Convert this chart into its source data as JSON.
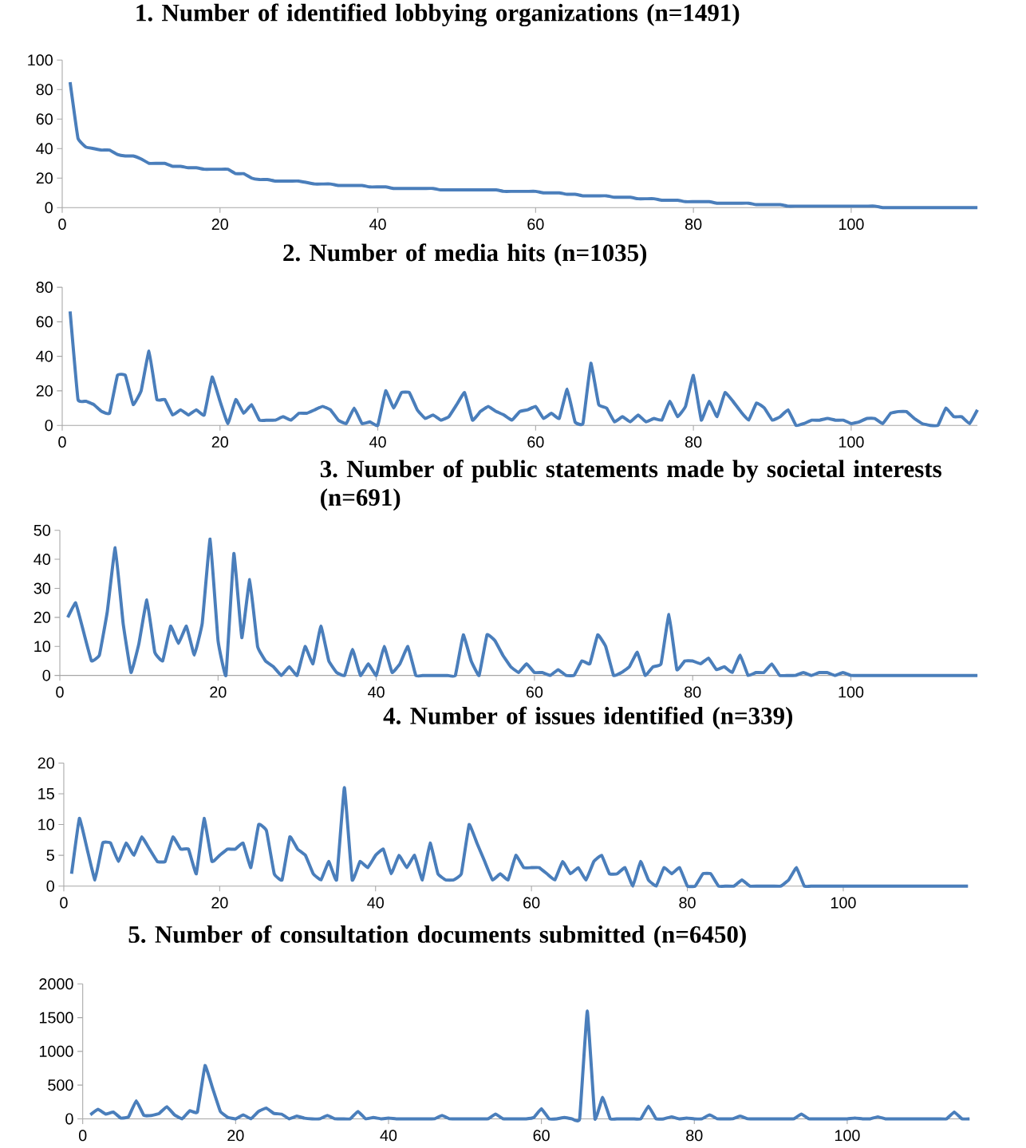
{
  "chart_data": [
    {
      "type": "line",
      "title": "1. Number of identified lobbying organizations (n=1491)",
      "xlim": [
        0,
        116
      ],
      "xticks": [
        0,
        20,
        40,
        60,
        80,
        100
      ],
      "ylim": [
        0,
        100
      ],
      "yticks": [
        0,
        20,
        40,
        60,
        80,
        100
      ],
      "grid": false,
      "x": [
        1,
        2,
        3,
        4,
        5,
        6,
        7,
        8,
        9,
        10,
        11,
        12,
        13,
        14,
        15,
        16,
        17,
        18,
        19,
        20,
        21,
        22,
        23,
        24,
        25,
        26,
        27,
        28,
        29,
        30,
        31,
        32,
        33,
        34,
        35,
        36,
        37,
        38,
        39,
        40,
        41,
        42,
        43,
        44,
        45,
        46,
        47,
        48,
        49,
        50,
        51,
        52,
        53,
        54,
        55,
        56,
        57,
        58,
        59,
        60,
        61,
        62,
        63,
        64,
        65,
        66,
        67,
        68,
        69,
        70,
        71,
        72,
        73,
        74,
        75,
        76,
        77,
        78,
        79,
        80,
        81,
        82,
        83,
        84,
        85,
        86,
        87,
        88,
        89,
        90,
        91,
        92,
        93,
        94,
        95,
        96,
        97,
        98,
        99,
        100,
        101,
        102,
        103,
        104,
        105,
        106,
        107,
        108,
        109,
        110,
        111,
        112,
        113,
        114,
        115,
        116
      ],
      "series": [
        {
          "color": "#4a7ebb",
          "values": [
            85,
            47,
            41,
            40,
            39,
            39,
            36,
            35,
            35,
            33,
            30,
            30,
            30,
            28,
            28,
            27,
            27,
            26,
            26,
            26,
            26,
            23,
            23,
            20,
            19,
            19,
            18,
            18,
            18,
            18,
            17,
            16,
            16,
            16,
            15,
            15,
            15,
            15,
            14,
            14,
            14,
            13,
            13,
            13,
            13,
            13,
            13,
            12,
            12,
            12,
            12,
            12,
            12,
            12,
            12,
            11,
            11,
            11,
            11,
            11,
            10,
            10,
            10,
            9,
            9,
            8,
            8,
            8,
            8,
            7,
            7,
            7,
            6,
            6,
            6,
            5,
            5,
            5,
            4,
            4,
            4,
            4,
            3,
            3,
            3,
            3,
            3,
            2,
            2,
            2,
            2,
            1,
            1,
            1,
            1,
            1,
            1,
            1,
            1,
            1,
            1,
            1,
            1,
            0,
            0,
            0,
            0,
            0,
            0,
            0,
            0,
            0,
            0,
            0,
            0,
            0
          ]
        }
      ]
    },
    {
      "type": "line",
      "title": "2. Number of media hits (n=1035)",
      "xlim": [
        0,
        116
      ],
      "xticks": [
        0,
        20,
        40,
        60,
        80,
        100
      ],
      "ylim": [
        0,
        80
      ],
      "yticks": [
        0,
        20,
        40,
        60,
        80
      ],
      "grid": false,
      "x": [
        1,
        2,
        3,
        4,
        5,
        6,
        7,
        8,
        9,
        10,
        11,
        12,
        13,
        14,
        15,
        16,
        17,
        18,
        19,
        20,
        21,
        22,
        23,
        24,
        25,
        26,
        27,
        28,
        29,
        30,
        31,
        32,
        33,
        34,
        35,
        36,
        37,
        38,
        39,
        40,
        41,
        42,
        43,
        44,
        45,
        46,
        47,
        48,
        49,
        50,
        51,
        52,
        53,
        54,
        55,
        56,
        57,
        58,
        59,
        60,
        61,
        62,
        63,
        64,
        65,
        66,
        67,
        68,
        69,
        70,
        71,
        72,
        73,
        74,
        75,
        76,
        77,
        78,
        79,
        80,
        81,
        82,
        83,
        84,
        85,
        86,
        87,
        88,
        89,
        90,
        91,
        92,
        93,
        94,
        95,
        96,
        97,
        98,
        99,
        100,
        101,
        102,
        103,
        104,
        105,
        106,
        107,
        108,
        109,
        110,
        111,
        112,
        113,
        114,
        115,
        116
      ],
      "series": [
        {
          "color": "#4a7ebb",
          "values": [
            66,
            15,
            14,
            12,
            8,
            7,
            29,
            29,
            12,
            20,
            43,
            15,
            15,
            6,
            9,
            6,
            9,
            6,
            28,
            14,
            1,
            15,
            7,
            12,
            3,
            3,
            3,
            5,
            3,
            7,
            7,
            9,
            11,
            9,
            3,
            1,
            10,
            1,
            2,
            0,
            20,
            10,
            19,
            19,
            9,
            4,
            6,
            3,
            5,
            12,
            19,
            3,
            8,
            11,
            8,
            6,
            3,
            8,
            9,
            11,
            4,
            7,
            4,
            21,
            2,
            1,
            36,
            12,
            10,
            2,
            5,
            2,
            6,
            2,
            4,
            3,
            14,
            5,
            11,
            29,
            3,
            14,
            5,
            19,
            14,
            8,
            3,
            13,
            10,
            3,
            5,
            9,
            0,
            1,
            3,
            3,
            4,
            3,
            3,
            1,
            2,
            4,
            4,
            1,
            7,
            8,
            8,
            4,
            1,
            0,
            0,
            10,
            5,
            5,
            1,
            9
          ]
        }
      ]
    },
    {
      "type": "line",
      "title": "3. Number of public statements made by societal interests (n=691)",
      "xlim": [
        0,
        116
      ],
      "xticks": [
        0,
        20,
        40,
        60,
        80,
        100
      ],
      "ylim": [
        0,
        50
      ],
      "yticks": [
        0,
        10,
        20,
        30,
        40,
        50
      ],
      "grid": false,
      "x": [
        1,
        2,
        3,
        4,
        5,
        6,
        7,
        8,
        9,
        10,
        11,
        12,
        13,
        14,
        15,
        16,
        17,
        18,
        19,
        20,
        21,
        22,
        23,
        24,
        25,
        26,
        27,
        28,
        29,
        30,
        31,
        32,
        33,
        34,
        35,
        36,
        37,
        38,
        39,
        40,
        41,
        42,
        43,
        44,
        45,
        46,
        47,
        48,
        49,
        50,
        51,
        52,
        53,
        54,
        55,
        56,
        57,
        58,
        59,
        60,
        61,
        62,
        63,
        64,
        65,
        66,
        67,
        68,
        69,
        70,
        71,
        72,
        73,
        74,
        75,
        76,
        77,
        78,
        79,
        80,
        81,
        82,
        83,
        84,
        85,
        86,
        87,
        88,
        89,
        90,
        91,
        92,
        93,
        94,
        95,
        96,
        97,
        98,
        99,
        100,
        101,
        102,
        103,
        104,
        105,
        106,
        107,
        108,
        109,
        110,
        111,
        112,
        113,
        114,
        115,
        116
      ],
      "series": [
        {
          "color": "#4a7ebb",
          "values": [
            20,
            25,
            15,
            5,
            7,
            22,
            44,
            18,
            1,
            11,
            26,
            8,
            5,
            17,
            11,
            17,
            7,
            18,
            47,
            12,
            0,
            42,
            13,
            33,
            10,
            5,
            3,
            0,
            3,
            0,
            10,
            4,
            17,
            5,
            1,
            0,
            9,
            0,
            4,
            0,
            10,
            1,
            4,
            10,
            0,
            0,
            0,
            0,
            0,
            0,
            14,
            5,
            0,
            14,
            12,
            7,
            3,
            1,
            4,
            1,
            1,
            0,
            2,
            0,
            0,
            5,
            4,
            14,
            10,
            0,
            1,
            3,
            8,
            0,
            3,
            4,
            21,
            2,
            5,
            5,
            4,
            6,
            2,
            3,
            1,
            7,
            0,
            1,
            1,
            4,
            0,
            0,
            0,
            1,
            0,
            1,
            1,
            0,
            1,
            0,
            0,
            0,
            0,
            0,
            0,
            0,
            0,
            0,
            0,
            0,
            0,
            0,
            0,
            0,
            0,
            0
          ]
        }
      ]
    },
    {
      "type": "line",
      "title": "4. Number of issues identified (n=339)",
      "xlim": [
        0,
        116
      ],
      "xticks": [
        0,
        20,
        40,
        60,
        80,
        100
      ],
      "ylim": [
        0,
        20
      ],
      "yticks": [
        0,
        5,
        10,
        15,
        20
      ],
      "grid": false,
      "x": [
        1,
        2,
        3,
        4,
        5,
        6,
        7,
        8,
        9,
        10,
        11,
        12,
        13,
        14,
        15,
        16,
        17,
        18,
        19,
        20,
        21,
        22,
        23,
        24,
        25,
        26,
        27,
        28,
        29,
        30,
        31,
        32,
        33,
        34,
        35,
        36,
        37,
        38,
        39,
        40,
        41,
        42,
        43,
        44,
        45,
        46,
        47,
        48,
        49,
        50,
        51,
        52,
        53,
        54,
        55,
        56,
        57,
        58,
        59,
        60,
        61,
        62,
        63,
        64,
        65,
        66,
        67,
        68,
        69,
        70,
        71,
        72,
        73,
        74,
        75,
        76,
        77,
        78,
        79,
        80,
        81,
        82,
        83,
        84,
        85,
        86,
        87,
        88,
        89,
        90,
        91,
        92,
        93,
        94,
        95,
        96,
        97,
        98,
        99,
        100,
        101,
        102,
        103,
        104,
        105,
        106,
        107,
        108,
        109,
        110,
        111,
        112,
        113,
        114,
        115,
        116
      ],
      "series": [
        {
          "color": "#4a7ebb",
          "values": [
            2,
            11,
            6,
            1,
            7,
            7,
            4,
            7,
            5,
            8,
            6,
            4,
            4,
            8,
            6,
            6,
            2,
            11,
            4,
            5,
            6,
            6,
            7,
            3,
            10,
            9,
            2,
            1,
            8,
            6,
            5,
            2,
            1,
            4,
            1,
            16,
            1,
            4,
            3,
            5,
            6,
            2,
            5,
            3,
            5,
            1,
            7,
            2,
            1,
            1,
            2,
            10,
            7,
            4,
            1,
            2,
            1,
            5,
            3,
            3,
            3,
            2,
            1,
            4,
            2,
            3,
            1,
            4,
            5,
            2,
            2,
            3,
            0,
            4,
            1,
            0,
            3,
            2,
            3,
            0,
            0,
            2,
            2,
            0,
            0,
            0,
            1,
            0,
            0,
            0,
            0,
            0,
            1,
            3,
            0,
            0,
            0,
            0,
            0,
            0,
            0,
            0,
            0,
            0,
            0,
            0,
            0,
            0,
            0,
            0,
            0,
            0,
            0,
            0,
            0,
            0
          ]
        }
      ]
    },
    {
      "type": "line",
      "title": "5. Number of consultation documents submitted (n=6450)",
      "xlim": [
        0,
        116
      ],
      "xticks": [
        0,
        20,
        40,
        60,
        80,
        100
      ],
      "ylim": [
        0,
        2000
      ],
      "yticks": [
        0,
        500,
        1000,
        1500,
        2000
      ],
      "grid": false,
      "x": [
        1,
        2,
        3,
        4,
        5,
        6,
        7,
        8,
        9,
        10,
        11,
        12,
        13,
        14,
        15,
        16,
        17,
        18,
        19,
        20,
        21,
        22,
        23,
        24,
        25,
        26,
        27,
        28,
        29,
        30,
        31,
        32,
        33,
        34,
        35,
        36,
        37,
        38,
        39,
        40,
        41,
        42,
        43,
        44,
        45,
        46,
        47,
        48,
        49,
        50,
        51,
        52,
        53,
        54,
        55,
        56,
        57,
        58,
        59,
        60,
        61,
        62,
        63,
        64,
        65,
        66,
        67,
        68,
        69,
        70,
        71,
        72,
        73,
        74,
        75,
        76,
        77,
        78,
        79,
        80,
        81,
        82,
        83,
        84,
        85,
        86,
        87,
        88,
        89,
        90,
        91,
        92,
        93,
        94,
        95,
        96,
        97,
        98,
        99,
        100,
        101,
        102,
        103,
        104,
        105,
        106,
        107,
        108,
        109,
        110,
        111,
        112,
        113,
        114,
        115,
        116
      ],
      "series": [
        {
          "color": "#4a7ebb",
          "values": [
            60,
            140,
            70,
            100,
            10,
            30,
            270,
            50,
            50,
            80,
            180,
            60,
            0,
            120,
            100,
            790,
            450,
            110,
            20,
            0,
            60,
            0,
            110,
            160,
            80,
            70,
            0,
            40,
            10,
            0,
            0,
            50,
            0,
            0,
            0,
            110,
            0,
            20,
            0,
            10,
            0,
            0,
            0,
            0,
            0,
            0,
            50,
            0,
            0,
            0,
            0,
            0,
            0,
            70,
            0,
            0,
            0,
            0,
            20,
            150,
            0,
            0,
            20,
            0,
            0,
            1600,
            0,
            320,
            0,
            0,
            0,
            0,
            0,
            190,
            0,
            0,
            30,
            0,
            10,
            0,
            0,
            60,
            0,
            0,
            0,
            40,
            0,
            0,
            0,
            0,
            0,
            0,
            0,
            70,
            0,
            0,
            0,
            0,
            0,
            0,
            10,
            0,
            0,
            30,
            0,
            0,
            0,
            0,
            0,
            0,
            0,
            0,
            0,
            100,
            0,
            0
          ]
        }
      ]
    }
  ]
}
